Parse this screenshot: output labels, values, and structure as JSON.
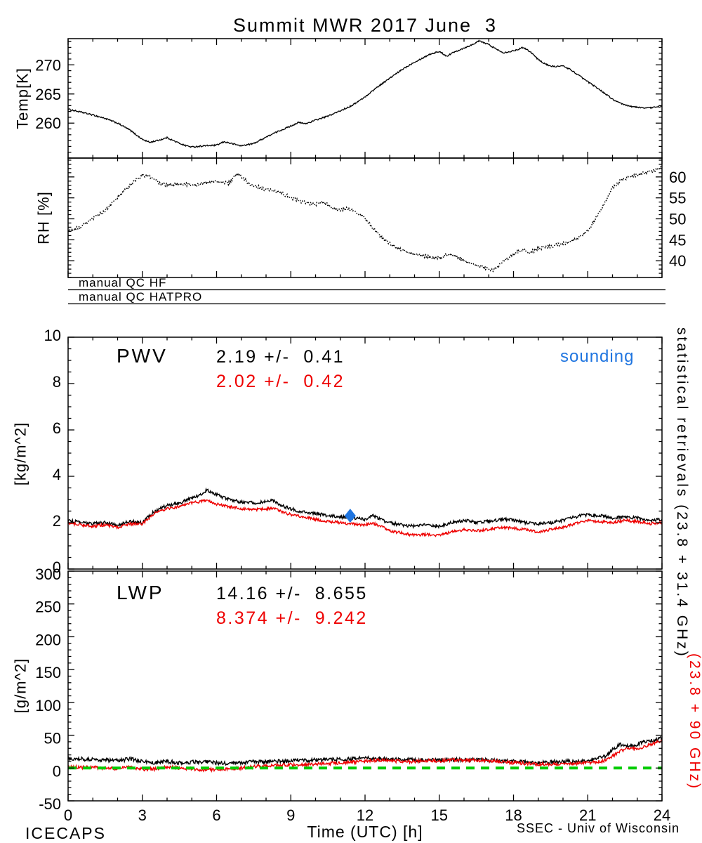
{
  "title": "Summit MWR 2017 June  3",
  "x_axis": {
    "label": "Time (UTC) [h]",
    "lim": [
      0,
      24
    ],
    "ticks": [
      0,
      3,
      6,
      9,
      12,
      15,
      18,
      21,
      24
    ],
    "minor_step": 1
  },
  "qc_flags": [
    {
      "label": "manual QC HF"
    },
    {
      "label": "manual QC HATPRO"
    }
  ],
  "annotations": {
    "pwv_label": "PWV",
    "pwv_stats_black": "2.19 +/-  0.41",
    "pwv_stats_red": "2.02 +/-  0.42",
    "sounding_label": "sounding",
    "lwp_label": "LWP",
    "lwp_stats_black": "14.16 +/-  8.655",
    "lwp_stats_red": "8.374 +/-  9.242"
  },
  "right_axis_labels": {
    "statistical": "statistical retrievals (23.8 + 31.4 GHz)",
    "lwp_freq": "(23.8 + 90 GHz)"
  },
  "footer": {
    "left": "ICECAPS",
    "right": "SSEC - Univ of Wisconsin"
  },
  "colors": {
    "black": "#000000",
    "red": "#ee0000",
    "green": "#00cc00",
    "blue": "#1f75e0"
  },
  "chart_data": [
    {
      "id": "temp",
      "type": "line",
      "ylabel": "Temp[K]",
      "ylim": [
        254,
        274.5
      ],
      "yticks": [
        260,
        265,
        270
      ],
      "ytick_labels_side": "left",
      "minor_step": 1,
      "series": [
        {
          "name": "temperature-hf",
          "color": "black",
          "noise": 0.12,
          "width": 1.3,
          "x": [
            0,
            0.5,
            1,
            1.5,
            2,
            2.5,
            3,
            3.3,
            3.7,
            4,
            4.3,
            4.7,
            5,
            5.5,
            6,
            6.3,
            6.7,
            7,
            7.5,
            8,
            8.5,
            9,
            9.3,
            9.6,
            10,
            10.5,
            11,
            11.5,
            12,
            12.5,
            13,
            13.5,
            14,
            14.3,
            14.6,
            15,
            15.3,
            15.6,
            16,
            16.3,
            16.6,
            17,
            17.3,
            17.6,
            18,
            18.4,
            18.7,
            19,
            19.3,
            19.6,
            20,
            20.3,
            20.6,
            21,
            21.5,
            22,
            22.3,
            22.6,
            23,
            23.5,
            24
          ],
          "y": [
            262.4,
            261.9,
            261.4,
            260.8,
            260.0,
            258.8,
            257.2,
            256.7,
            257.1,
            257.5,
            256.9,
            256.2,
            255.9,
            256.1,
            256.2,
            256.8,
            256.4,
            256.1,
            256.5,
            257.6,
            258.6,
            259.5,
            260.1,
            259.9,
            260.5,
            261.2,
            262.1,
            263.1,
            264.5,
            266.2,
            267.7,
            269.2,
            270.5,
            271.1,
            271.8,
            272.3,
            271.5,
            272.2,
            272.9,
            273.4,
            274.1,
            273.5,
            272.7,
            272.1,
            272.4,
            273.0,
            272.2,
            270.9,
            270.1,
            269.7,
            269.8,
            269.2,
            268.3,
            267.1,
            265.7,
            264.1,
            263.4,
            263.0,
            262.7,
            262.6,
            262.9
          ]
        }
      ]
    },
    {
      "id": "rh",
      "type": "line",
      "ylabel": "RH [%]",
      "ylim": [
        36,
        64.5
      ],
      "yticks": [
        40,
        45,
        50,
        55,
        60
      ],
      "ytick_labels_side": "right",
      "minor_step": 1,
      "series": [
        {
          "name": "relative-humidity",
          "color": "black",
          "noise": 0.4,
          "width": 1.5,
          "dash": "1.5 2.2",
          "x": [
            0,
            0.5,
            1,
            1.5,
            2,
            2.5,
            3,
            3.3,
            3.7,
            4,
            4.5,
            5,
            5.5,
            6,
            6.5,
            6.8,
            7,
            7.3,
            7.7,
            8,
            8.5,
            9,
            9.5,
            10,
            10.3,
            10.7,
            11,
            11.3,
            11.7,
            12,
            12.5,
            13,
            13.5,
            14,
            14.5,
            15,
            15.3,
            15.7,
            16,
            16.5,
            17,
            17.2,
            17.5,
            18,
            18.3,
            18.7,
            19,
            19.5,
            20,
            20.5,
            21,
            21.3,
            21.7,
            22,
            22.3,
            22.7,
            23,
            23.3,
            23.7,
            24
          ],
          "y": [
            47,
            48,
            50,
            52,
            55,
            58,
            60.5,
            60,
            58.5,
            58,
            58.5,
            58,
            58.5,
            59,
            58.5,
            60.5,
            60,
            58.5,
            57.5,
            57,
            56.5,
            55,
            54,
            53.5,
            54,
            52.5,
            52,
            52.5,
            51.5,
            50,
            46.5,
            44,
            42.5,
            41.5,
            41,
            40.5,
            41.5,
            41,
            40,
            39,
            38,
            37.8,
            39.5,
            41.5,
            42.5,
            42,
            43,
            43.5,
            44,
            45,
            47,
            50,
            54,
            57.5,
            59,
            60,
            60.5,
            61,
            61.5,
            62.5
          ]
        }
      ]
    },
    {
      "id": "pwv",
      "type": "line",
      "ylabel": "[kg/m^2]",
      "ylim": [
        0,
        10
      ],
      "yticks": [
        0,
        2,
        4,
        6,
        8,
        10
      ],
      "ytick_labels_side": "left",
      "minor_step": 0.5,
      "series": [
        {
          "name": "pwv-hf",
          "color": "black",
          "noise": 0.07,
          "width": 1.4,
          "x": [
            0,
            0.5,
            1,
            1.5,
            2,
            2.5,
            3,
            3.5,
            4,
            4.5,
            5,
            5.3,
            5.6,
            6,
            6.5,
            7,
            7.5,
            8,
            8.3,
            8.7,
            9,
            9.5,
            10,
            10.5,
            11,
            11.5,
            12,
            12.3,
            12.7,
            13,
            13.5,
            14,
            14.5,
            15,
            15.5,
            16,
            16.5,
            17,
            17.5,
            18,
            18.5,
            19,
            19.5,
            20,
            20.5,
            21,
            21.5,
            22,
            22.5,
            23,
            23.5,
            24
          ],
          "y": [
            2.1,
            2.0,
            1.95,
            2.0,
            1.9,
            2.05,
            2.0,
            2.5,
            2.75,
            2.85,
            3.05,
            3.2,
            3.4,
            3.2,
            3.0,
            2.9,
            2.85,
            2.9,
            2.95,
            2.7,
            2.6,
            2.45,
            2.4,
            2.3,
            2.25,
            2.2,
            2.15,
            2.3,
            2.1,
            2.0,
            1.9,
            1.85,
            1.9,
            1.85,
            2.0,
            2.1,
            2.0,
            2.05,
            2.15,
            2.1,
            2.0,
            1.95,
            2.0,
            2.1,
            2.25,
            2.35,
            2.3,
            2.2,
            2.25,
            2.2,
            2.1,
            2.15
          ]
        },
        {
          "name": "pwv-hatpro",
          "color": "red",
          "noise": 0.06,
          "width": 1.4,
          "x": [
            0,
            0.5,
            1,
            1.5,
            2,
            2.5,
            3,
            3.5,
            4,
            4.5,
            5,
            5.3,
            5.6,
            6,
            6.5,
            7,
            7.5,
            8,
            8.3,
            8.7,
            9,
            9.5,
            10,
            10.5,
            11,
            11.5,
            12,
            12.3,
            12.7,
            13,
            13.5,
            14,
            14.5,
            15,
            15.5,
            16,
            16.5,
            17,
            17.5,
            18,
            18.5,
            19,
            19.5,
            20,
            20.5,
            21,
            21.5,
            22,
            22.5,
            23,
            23.5,
            24
          ],
          "y": [
            2.0,
            1.9,
            1.85,
            1.9,
            1.8,
            1.95,
            1.95,
            2.4,
            2.6,
            2.7,
            2.85,
            2.9,
            2.95,
            2.8,
            2.7,
            2.6,
            2.55,
            2.6,
            2.6,
            2.45,
            2.35,
            2.25,
            2.15,
            2.05,
            2.0,
            1.95,
            1.9,
            2.0,
            1.8,
            1.65,
            1.55,
            1.45,
            1.5,
            1.45,
            1.6,
            1.7,
            1.65,
            1.7,
            1.8,
            1.75,
            1.7,
            1.6,
            1.7,
            1.8,
            1.95,
            2.1,
            2.05,
            2.0,
            2.1,
            2.05,
            1.95,
            2.0
          ]
        }
      ],
      "marker": {
        "name": "sounding",
        "shape": "diamond",
        "color": "blue",
        "x": 11.4,
        "y": 2.3,
        "size": 8
      }
    },
    {
      "id": "lwp",
      "type": "line",
      "ylabel": "[g/m^2]",
      "ylim": [
        -50,
        300
      ],
      "yticks": [
        -50,
        0,
        50,
        100,
        150,
        200,
        250,
        300
      ],
      "ytick_labels_side": "left",
      "minor_step": 10,
      "xtick_labels": true,
      "series": [
        {
          "name": "lwp-hf",
          "color": "black",
          "noise": 3,
          "width": 1.4,
          "x": [
            0,
            0.5,
            1,
            1.5,
            2,
            2.5,
            3,
            3.5,
            4,
            4.5,
            5,
            5.5,
            6,
            6.5,
            7,
            7.5,
            8,
            8.5,
            9,
            9.5,
            10,
            10.5,
            11,
            11.5,
            12,
            12.5,
            13,
            13.5,
            14,
            14.5,
            15,
            15.5,
            16,
            16.5,
            17,
            17.5,
            18,
            18.5,
            19,
            19.5,
            20,
            20.5,
            21,
            21.3,
            21.7,
            22,
            22.3,
            22.7,
            23,
            23.3,
            23.7,
            24
          ],
          "y": [
            15,
            14,
            13,
            12,
            11,
            14,
            10,
            8,
            10,
            8,
            9,
            10,
            8,
            6,
            8,
            10,
            9,
            10,
            11,
            12,
            12,
            13,
            13,
            14,
            15,
            14,
            13,
            13,
            12,
            13,
            12,
            13,
            12,
            13,
            12,
            11,
            10,
            9,
            8,
            9,
            10,
            10,
            12,
            14,
            18,
            28,
            36,
            34,
            36,
            40,
            42,
            46
          ]
        },
        {
          "name": "lwp-hatpro",
          "color": "red",
          "noise": 2.5,
          "width": 1.4,
          "x": [
            0,
            0.5,
            1,
            1.5,
            2,
            2.5,
            3,
            3.5,
            4,
            4.5,
            5,
            5.5,
            6,
            6.5,
            7,
            7.5,
            8,
            8.5,
            9,
            9.5,
            10,
            10.5,
            11,
            11.5,
            12,
            12.5,
            13,
            13.5,
            14,
            14.5,
            15,
            15.5,
            16,
            16.5,
            17,
            17.5,
            18,
            18.5,
            19,
            19.5,
            20,
            20.5,
            21,
            21.3,
            21.7,
            22,
            22.3,
            22.7,
            23,
            23.3,
            23.7,
            24
          ],
          "y": [
            2,
            1,
            1,
            0,
            -1,
            2,
            -2,
            -1,
            2,
            0,
            -1,
            -3,
            -2,
            -1,
            0,
            2,
            3,
            4,
            5,
            5,
            6,
            7,
            8,
            9,
            10,
            12,
            11,
            10,
            10,
            11,
            11,
            12,
            12,
            12,
            11,
            10,
            8,
            7,
            6,
            6,
            7,
            7,
            8,
            9,
            11,
            18,
            26,
            30,
            28,
            33,
            38,
            42
          ]
        }
      ],
      "ref_line": {
        "y": 0,
        "color": "green",
        "dash": "12 9",
        "width": 4
      }
    }
  ]
}
